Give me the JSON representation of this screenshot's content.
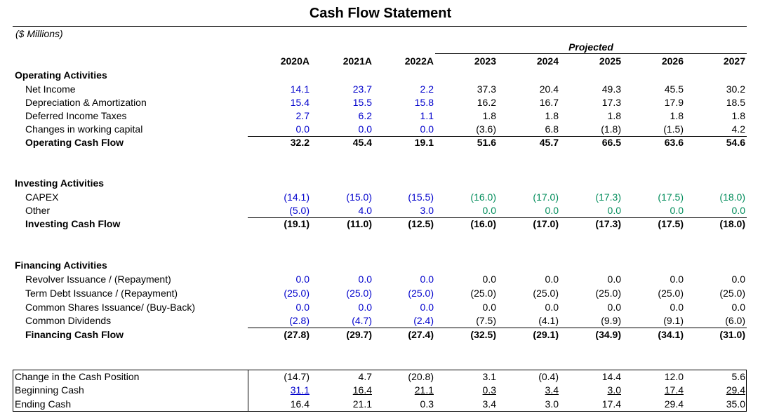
{
  "title": "Cash Flow Statement",
  "units": "($ Millions)",
  "projected_label": "Projected",
  "years": [
    "2020A",
    "2021A",
    "2022A",
    "2023",
    "2024",
    "2025",
    "2026",
    "2027"
  ],
  "operating": {
    "header": "Operating Activities",
    "rows": [
      {
        "label": "Net Income",
        "values": [
          "14.1",
          "23.7",
          "2.2",
          "37.3",
          "20.4",
          "49.3",
          "45.5",
          "30.2"
        ]
      },
      {
        "label": "Depreciation & Amortization",
        "values": [
          "15.4",
          "15.5",
          "15.8",
          "16.2",
          "16.7",
          "17.3",
          "17.9",
          "18.5"
        ]
      },
      {
        "label": "Deferred Income Taxes",
        "values": [
          "2.7",
          "6.2",
          "1.1",
          "1.8",
          "1.8",
          "1.8",
          "1.8",
          "1.8"
        ]
      },
      {
        "label": "Changes in working capital",
        "values": [
          "0.0",
          "0.0",
          "0.0",
          "(3.6)",
          "6.8",
          "(1.8)",
          "(1.5)",
          "4.2"
        ]
      }
    ],
    "total": {
      "label": "Operating Cash Flow",
      "values": [
        "32.2",
        "45.4",
        "19.1",
        "51.6",
        "45.7",
        "66.5",
        "63.6",
        "54.6"
      ]
    }
  },
  "investing": {
    "header": "Investing Activities",
    "rows": [
      {
        "label": "CAPEX",
        "values": [
          "(14.1)",
          "(15.0)",
          "(15.5)",
          "(16.0)",
          "(17.0)",
          "(17.3)",
          "(17.5)",
          "(18.0)"
        ]
      },
      {
        "label": "Other",
        "values": [
          "(5.0)",
          "4.0",
          "3.0",
          "0.0",
          "0.0",
          "0.0",
          "0.0",
          "0.0"
        ]
      }
    ],
    "total": {
      "label": "Investing Cash Flow",
      "values": [
        "(19.1)",
        "(11.0)",
        "(12.5)",
        "(16.0)",
        "(17.0)",
        "(17.3)",
        "(17.5)",
        "(18.0)"
      ]
    }
  },
  "financing": {
    "header": "Financing Activities",
    "rows": [
      {
        "label": "Revolver Issuance / (Repayment)",
        "values": [
          "0.0",
          "0.0",
          "0.0",
          "0.0",
          "0.0",
          "0.0",
          "0.0",
          "0.0"
        ]
      },
      {
        "label": "Term Debt Issuance / (Repayment)",
        "values": [
          "(25.0)",
          "(25.0)",
          "(25.0)",
          "(25.0)",
          "(25.0)",
          "(25.0)",
          "(25.0)",
          "(25.0)"
        ]
      },
      {
        "label": "Common Shares Issuance/ (Buy-Back)",
        "values": [
          "0.0",
          "0.0",
          "0.0",
          "0.0",
          "0.0",
          "0.0",
          "0.0",
          "0.0"
        ]
      },
      {
        "label": "Common Dividends",
        "values": [
          "(2.8)",
          "(4.7)",
          "(2.4)",
          "(7.5)",
          "(4.1)",
          "(9.9)",
          "(9.1)",
          "(6.0)"
        ]
      }
    ],
    "total": {
      "label": "Financing Cash Flow",
      "values": [
        "(27.8)",
        "(29.7)",
        "(27.4)",
        "(32.5)",
        "(29.1)",
        "(34.9)",
        "(34.1)",
        "(31.0)"
      ]
    }
  },
  "cash": {
    "rows": [
      {
        "label": "Change in the Cash Position",
        "values": [
          "(14.7)",
          "4.7",
          "(20.8)",
          "3.1",
          "(0.4)",
          "14.4",
          "12.0",
          "5.6"
        ]
      },
      {
        "label": "Beginning Cash",
        "values": [
          "31.1",
          "16.4",
          "21.1",
          "0.3",
          "3.4",
          "3.0",
          "17.4",
          "29.4"
        ]
      },
      {
        "label": "Ending Cash",
        "values": [
          "16.4",
          "21.1",
          "0.3",
          "3.4",
          "3.0",
          "17.4",
          "29.4",
          "35.0"
        ]
      }
    ]
  },
  "colors": {
    "historical_input": "#0000cc",
    "projected_input": "#008c5a",
    "formula": "#000000"
  }
}
